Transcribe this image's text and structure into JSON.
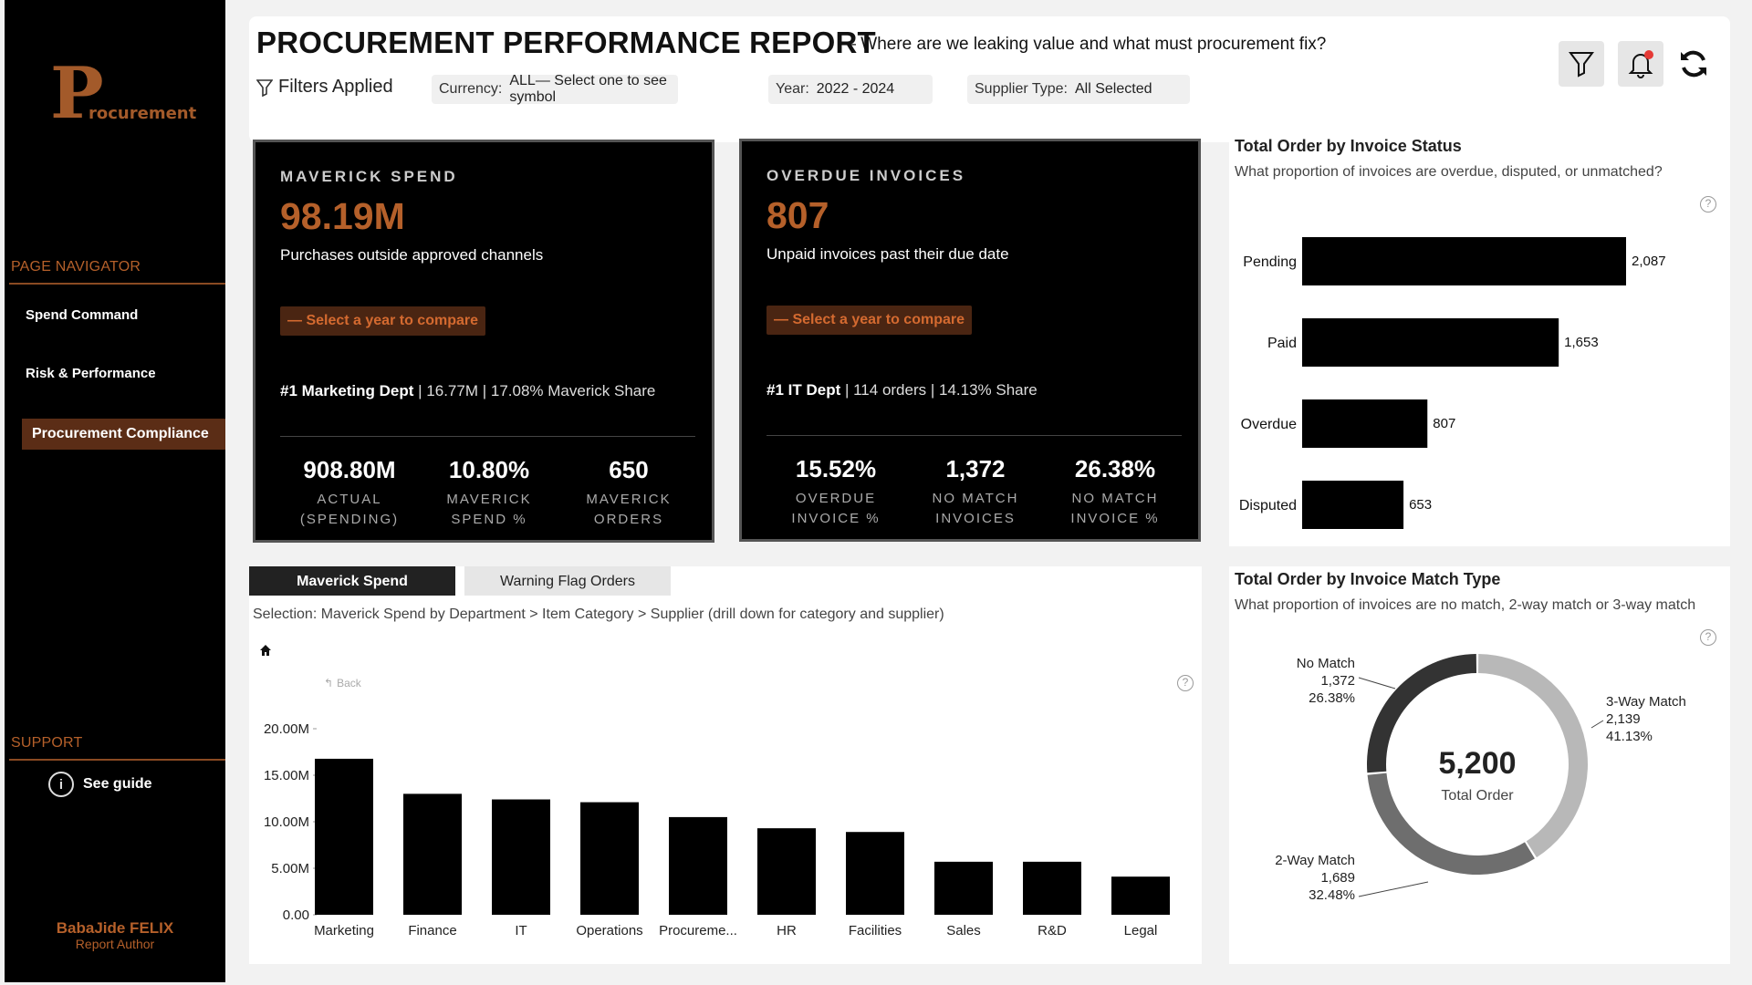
{
  "sidebar": {
    "logo_letter": "P",
    "logo_rest": "rocurement",
    "navigator_heading": "PAGE NAVIGATOR",
    "nav_items": [
      {
        "label": "Spend Command"
      },
      {
        "label": "Risk & Performance"
      },
      {
        "label": "Procurement Compliance"
      }
    ],
    "support_heading": "SUPPORT",
    "guide_icon": "i",
    "guide_label": "See guide",
    "author_name": "BabaJide FELIX",
    "author_role": "Report Author"
  },
  "header": {
    "title": "PROCUREMENT PERFORMANCE REPORT",
    "subtitle": "— Where are we leaking value and what must procurement fix?",
    "filters_label": "Filters Applied",
    "currency_label": "Currency:",
    "currency_value": "ALL— Select one to see symbol",
    "year_label": "Year:",
    "year_value": "2022 - 2024",
    "supplier_label": "Supplier Type:",
    "supplier_value": "All Selected",
    "icons": [
      "filter-icon",
      "bell-icon",
      "refresh-icon"
    ]
  },
  "kpi_maverick": {
    "heading": "MAVERICK SPEND",
    "value": "98.19M",
    "description": "Purchases outside approved channels",
    "compare_button": "— Select a year to compare",
    "top_bold": "#1 Marketing Dept",
    "top_rest": " | 16.77M | 17.08% Maverick Share",
    "stats": [
      {
        "value": "908.80M",
        "label1": "ACTUAL",
        "label2": "(SPENDING)"
      },
      {
        "value": "10.80%",
        "label1": "MAVERICK",
        "label2": "SPEND %"
      },
      {
        "value": "650",
        "label1": "MAVERICK",
        "label2": "ORDERS"
      }
    ]
  },
  "kpi_overdue": {
    "heading": "OVERDUE INVOICES",
    "value": "807",
    "description": "Unpaid invoices past their due date",
    "compare_button": "— Select a year to compare",
    "top_bold": "#1 IT Dept",
    "top_rest": " | 114 orders | 14.13% Share",
    "stats": [
      {
        "value": "15.52%",
        "label1": "OVERDUE",
        "label2": "INVOICE %"
      },
      {
        "value": "1,372",
        "label1": "NO MATCH",
        "label2": "INVOICES"
      },
      {
        "value": "26.38%",
        "label1": "NO MATCH",
        "label2": "INVOICE %"
      }
    ]
  },
  "invoice_status": {
    "title": "Total Order by Invoice Status",
    "subtitle": "What proportion of invoices are overdue, disputed, or unmatched?",
    "help": "?"
  },
  "match_type": {
    "title": "Total Order by Invoice Match Type",
    "subtitle": "What proportion of invoices are no match, 2-way match or 3-way match",
    "help": "?",
    "center_value": "5,200",
    "center_label": "Total Order"
  },
  "bottom": {
    "tab_active": "Maverick Spend",
    "tab_inactive": "Warning Flag Orders",
    "breadcrumb": "Selection: Maverick Spend by Department > Item Category > Supplier (drill down for category and supplier)",
    "back_label": "Back",
    "help": "?"
  },
  "colors": {
    "accent": "#b5602a",
    "bar": "#000000",
    "donut_no_match": "#333333",
    "donut_two_way": "#6e6e6e",
    "donut_three_way": "#b8b8b8"
  },
  "chart_data": [
    {
      "type": "bar",
      "orientation": "horizontal",
      "categories": [
        "Pending",
        "Paid",
        "Overdue",
        "Disputed"
      ],
      "values": [
        2087,
        1653,
        807,
        653
      ],
      "value_labels": [
        "2,087",
        "1,653",
        "807",
        "653"
      ],
      "title": "Total Order by Invoice Status",
      "xlim": [
        0,
        2087
      ],
      "grid": false
    },
    {
      "type": "pie",
      "donut": true,
      "categories": [
        "3-Way Match",
        "2-Way Match",
        "No Match"
      ],
      "values": [
        2139,
        1689,
        1372
      ],
      "value_labels": [
        "2,139",
        "1,689",
        "1,372"
      ],
      "percent_labels": [
        "41.13%",
        "32.48%",
        "26.38%"
      ],
      "title": "Total Order by Invoice Match Type"
    },
    {
      "type": "bar",
      "categories": [
        "Marketing",
        "Finance",
        "IT",
        "Operations",
        "Procureme...",
        "HR",
        "Facilities",
        "Sales",
        "R&D",
        "Legal"
      ],
      "values": [
        16.77,
        13.0,
        12.4,
        12.1,
        10.5,
        9.3,
        8.9,
        5.7,
        5.7,
        4.1
      ],
      "unit": "M",
      "ylim": [
        0,
        20
      ],
      "yticks": [
        "0.00",
        "5.00M",
        "10.00M",
        "15.00M",
        "20.00M"
      ],
      "grid": false
    }
  ]
}
